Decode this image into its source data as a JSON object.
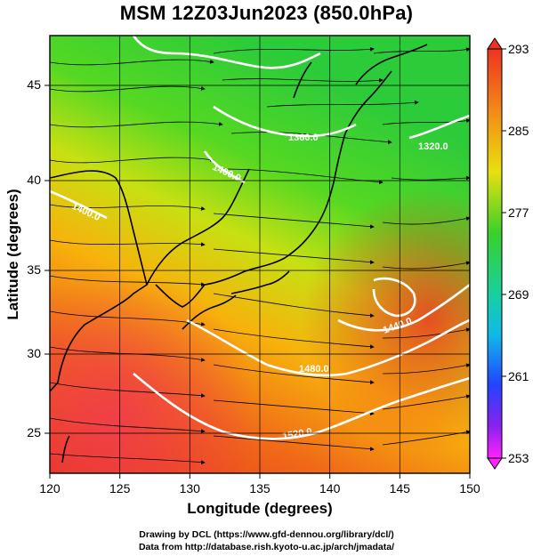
{
  "title": "MSM 12Z03Jun2023 (850.0hPa)",
  "xaxis": {
    "label": "Longitude (degrees)",
    "ticks": [
      "120",
      "125",
      "130",
      "135",
      "140",
      "145",
      "150"
    ],
    "range": [
      120,
      150
    ]
  },
  "yaxis": {
    "label": "Latitude  (degrees)",
    "ticks": [
      "25",
      "30",
      "35",
      "40",
      "45"
    ],
    "range": [
      22.4,
      47.6
    ]
  },
  "colorbar": {
    "ticks": [
      "293",
      "285",
      "277",
      "269",
      "261",
      "253"
    ],
    "range": [
      253,
      293
    ]
  },
  "contour_labels": [
    "1360.0",
    "1320.0",
    "1400.0",
    "1400.0",
    "1440.0",
    "1480.0",
    "1520.0"
  ],
  "credits": [
    "Drawing by DCL (https://www.gfd-dennou.org/library/dcl/)",
    "Data from http://database.rish.kyoto-u.ac.jp/arch/jmadata/"
  ],
  "colors": {
    "warm": "#ee3322",
    "mid": "#ffcc00",
    "green": "#22cc33",
    "cyan": "#00ccdd",
    "blue": "#2244ff",
    "magenta": "#ff00ff"
  }
}
